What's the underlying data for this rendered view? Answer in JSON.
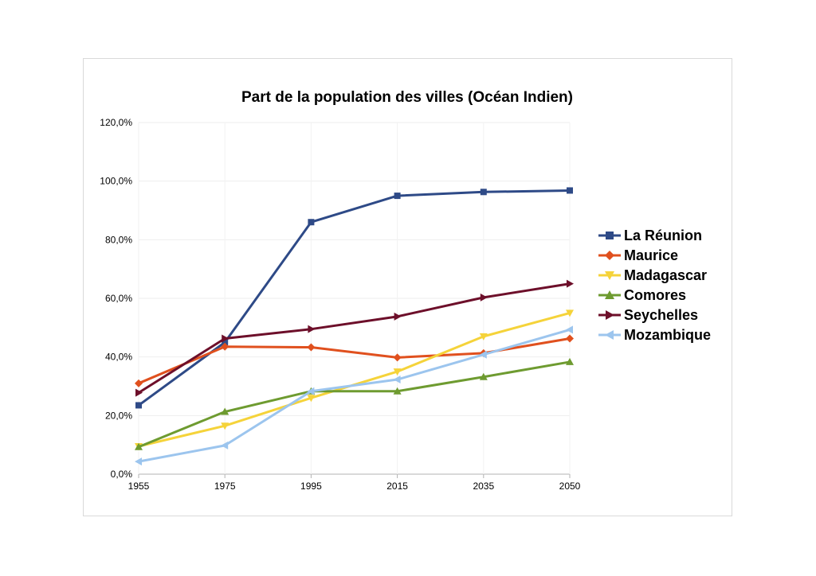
{
  "chart_data": {
    "type": "line",
    "title": "Part de la population des villes (Océan Indien)",
    "xlabel": "",
    "ylabel": "",
    "categories": [
      "1955",
      "1975",
      "1995",
      "2015",
      "2035",
      "2050"
    ],
    "ylim": [
      0,
      120
    ],
    "yticks": [
      "0,0%",
      "20,0%",
      "40,0%",
      "60,0%",
      "80,0%",
      "100,0%",
      "120,0%"
    ],
    "grid": true,
    "legend_position": "right",
    "series": [
      {
        "name": "La Réunion",
        "color": "#2e4a87",
        "marker": "square",
        "values": [
          23.5,
          45.0,
          86.0,
          95.0,
          96.3,
          96.8
        ]
      },
      {
        "name": "Maurice",
        "color": "#e0501e",
        "marker": "diamond",
        "values": [
          31.0,
          43.5,
          43.3,
          39.8,
          41.3,
          46.3
        ]
      },
      {
        "name": "Madagascar",
        "color": "#f5d33a",
        "marker": "triangle-down",
        "values": [
          9.5,
          16.5,
          26.0,
          35.0,
          47.0,
          55.0
        ]
      },
      {
        "name": "Comores",
        "color": "#6e9b30",
        "marker": "triangle-up",
        "values": [
          9.3,
          21.3,
          28.3,
          28.3,
          33.2,
          38.3
        ]
      },
      {
        "name": "Seychelles",
        "color": "#6d0f2a",
        "marker": "triangle-right",
        "values": [
          27.8,
          46.3,
          49.5,
          53.8,
          60.3,
          65.0
        ]
      },
      {
        "name": "Mozambique",
        "color": "#9cc5ee",
        "marker": "triangle-left",
        "values": [
          4.3,
          9.8,
          28.3,
          32.3,
          40.8,
          49.3
        ]
      }
    ]
  }
}
